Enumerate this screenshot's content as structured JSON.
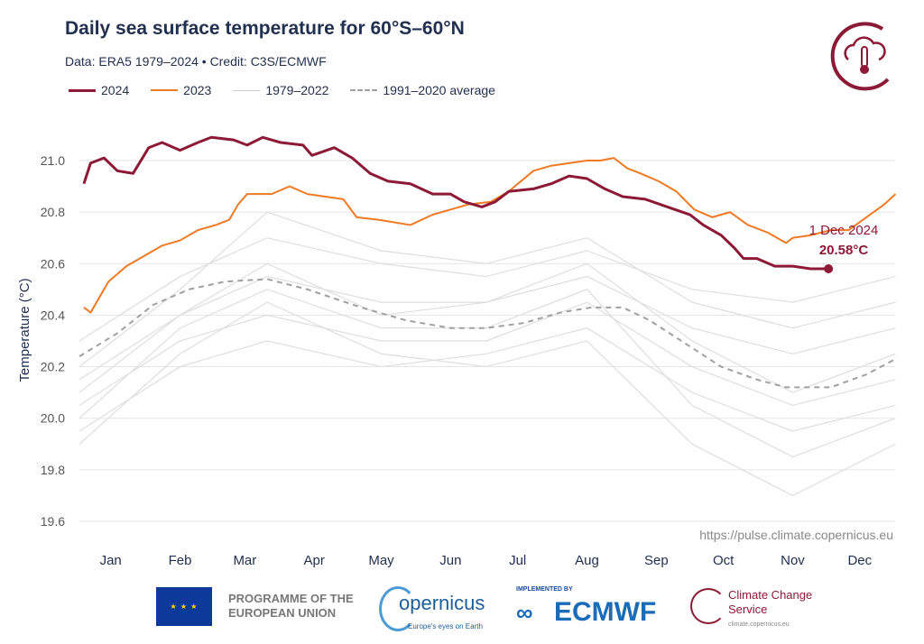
{
  "header": {
    "title": "Daily sea surface temperature for 60°S–60°N",
    "subtitle": "Data: ERA5 1979–2024  •  Credit: C3S/ECMWF"
  },
  "legend": [
    {
      "label": "2024",
      "color": "#8c1a36",
      "style": "solid"
    },
    {
      "label": "2023",
      "color": "#f07a24",
      "style": "solid"
    },
    {
      "label": "1979–2022",
      "color": "#dedede",
      "style": "solid"
    },
    {
      "label": "1991–2020 average",
      "color": "#a0a0a0",
      "style": "dashed"
    }
  ],
  "chart_data": {
    "type": "line",
    "ylabel": "Temperature (°C)",
    "ylim": [
      19.55,
      21.15
    ],
    "yticks": [
      "19.6",
      "19.8",
      "20.0",
      "20.2",
      "20.4",
      "20.6",
      "20.8",
      "21.0"
    ],
    "xticks": [
      "Jan",
      "Feb",
      "Mar",
      "Apr",
      "May",
      "Jun",
      "Jul",
      "Aug",
      "Sep",
      "Oct",
      "Nov",
      "Dec"
    ],
    "grid": true,
    "annotation": {
      "date": "1 Dec 2024",
      "value": "20.58°C"
    },
    "source_note": "https://pulse.climate.copernicus.eu",
    "series": [
      {
        "name": "2024",
        "color": "#8c1a36",
        "points": [
          [
            "Jan 3",
            20.91
          ],
          [
            "Jan 6",
            20.99
          ],
          [
            "Jan 12",
            21.01
          ],
          [
            "Jan 18",
            20.96
          ],
          [
            "Jan 25",
            20.95
          ],
          [
            "Feb 1",
            21.05
          ],
          [
            "Feb 7",
            21.07
          ],
          [
            "Feb 15",
            21.04
          ],
          [
            "Feb 23",
            21.07
          ],
          [
            "Feb 29",
            21.09
          ],
          [
            "Mar 10",
            21.08
          ],
          [
            "Mar 16",
            21.06
          ],
          [
            "Mar 23",
            21.09
          ],
          [
            "Mar 31",
            21.07
          ],
          [
            "Apr 10",
            21.06
          ],
          [
            "Apr 14",
            21.02
          ],
          [
            "Apr 24",
            21.05
          ],
          [
            "May 2",
            21.01
          ],
          [
            "May 10",
            20.95
          ],
          [
            "May 18",
            20.92
          ],
          [
            "May 28",
            20.91
          ],
          [
            "Jun 7",
            20.87
          ],
          [
            "Jun 15",
            20.87
          ],
          [
            "Jun 21",
            20.84
          ],
          [
            "Jun 29",
            20.82
          ],
          [
            "Jul 5",
            20.84
          ],
          [
            "Jul 11",
            20.88
          ],
          [
            "Jul 22",
            20.89
          ],
          [
            "Jul 30",
            20.91
          ],
          [
            "Aug 7",
            20.94
          ],
          [
            "Aug 15",
            20.93
          ],
          [
            "Aug 23",
            20.89
          ],
          [
            "Aug 31",
            20.86
          ],
          [
            "Sep 10",
            20.85
          ],
          [
            "Sep 20",
            20.82
          ],
          [
            "Sep 30",
            20.79
          ],
          [
            "Oct 6",
            20.75
          ],
          [
            "Oct 14",
            20.71
          ],
          [
            "Oct 20",
            20.66
          ],
          [
            "Oct 24",
            20.62
          ],
          [
            "Oct 30",
            20.62
          ],
          [
            "Nov 7",
            20.59
          ],
          [
            "Nov 15",
            20.59
          ],
          [
            "Nov 23",
            20.58
          ],
          [
            "Dec 1",
            20.58
          ]
        ]
      },
      {
        "name": "2023",
        "color": "#f07a24",
        "points": [
          [
            "Jan 3",
            20.43
          ],
          [
            "Jan 6",
            20.41
          ],
          [
            "Jan 10",
            20.47
          ],
          [
            "Jan 14",
            20.53
          ],
          [
            "Jan 22",
            20.59
          ],
          [
            "Jan 30",
            20.63
          ],
          [
            "Feb 7",
            20.67
          ],
          [
            "Feb 15",
            20.69
          ],
          [
            "Feb 23",
            20.73
          ],
          [
            "Mar 2",
            20.75
          ],
          [
            "Mar 8",
            20.77
          ],
          [
            "Mar 12",
            20.83
          ],
          [
            "Mar 16",
            20.87
          ],
          [
            "Mar 27",
            20.87
          ],
          [
            "Apr 4",
            20.9
          ],
          [
            "Apr 12",
            20.87
          ],
          [
            "Apr 20",
            20.86
          ],
          [
            "Apr 28",
            20.85
          ],
          [
            "May 4",
            20.78
          ],
          [
            "May 14",
            20.77
          ],
          [
            "May 28",
            20.75
          ],
          [
            "Jun 7",
            20.79
          ],
          [
            "Jun 15",
            20.81
          ],
          [
            "Jun 23",
            20.83
          ],
          [
            "Jul 3",
            20.84
          ],
          [
            "Jul 11",
            20.88
          ],
          [
            "Jul 22",
            20.96
          ],
          [
            "Jul 30",
            20.98
          ],
          [
            "Aug 7",
            20.99
          ],
          [
            "Aug 15",
            21.0
          ],
          [
            "Aug 21",
            21.0
          ],
          [
            "Aug 27",
            21.01
          ],
          [
            "Sep 2",
            20.97
          ],
          [
            "Sep 8",
            20.95
          ],
          [
            "Sep 16",
            20.92
          ],
          [
            "Sep 24",
            20.88
          ],
          [
            "Oct 2",
            20.81
          ],
          [
            "Oct 10",
            20.78
          ],
          [
            "Oct 18",
            20.8
          ],
          [
            "Oct 26",
            20.75
          ],
          [
            "Nov 4",
            20.72
          ],
          [
            "Nov 12",
            20.68
          ],
          [
            "Nov 15",
            20.7
          ],
          [
            "Nov 23",
            20.71
          ],
          [
            "Dec 2",
            20.73
          ],
          [
            "Dec 10",
            20.73
          ],
          [
            "Dec 18",
            20.78
          ],
          [
            "Dec 26",
            20.83
          ],
          [
            "Dec 31",
            20.87
          ]
        ]
      },
      {
        "name": "1991–2020 average",
        "color": "#a0a0a0",
        "dashed": true,
        "points": [
          [
            "Jan 1",
            20.24
          ],
          [
            "Jan 18",
            20.33
          ],
          [
            "Feb 3",
            20.44
          ],
          [
            "Feb 19",
            20.5
          ],
          [
            "Mar 6",
            20.53
          ],
          [
            "Mar 25",
            20.54
          ],
          [
            "Apr 12",
            20.5
          ],
          [
            "May 6",
            20.43
          ],
          [
            "May 26",
            20.38
          ],
          [
            "Jun 15",
            20.35
          ],
          [
            "Jul 1",
            20.35
          ],
          [
            "Jul 18",
            20.37
          ],
          [
            "Aug 3",
            20.41
          ],
          [
            "Aug 17",
            20.43
          ],
          [
            "Aug 31",
            20.43
          ],
          [
            "Sep 12",
            20.38
          ],
          [
            "Sep 28",
            20.29
          ],
          [
            "Oct 14",
            20.2
          ],
          [
            "Oct 30",
            20.15
          ],
          [
            "Nov 12",
            20.12
          ],
          [
            "Dec 2",
            20.12
          ],
          [
            "Dec 18",
            20.17
          ],
          [
            "Dec 31",
            20.23
          ]
        ]
      }
    ],
    "background_years": {
      "name": "1979–2022",
      "color": "#dedede",
      "dates": [
        "Jan 1",
        "Feb 15",
        "Mar 25",
        "May 15",
        "Jul 1",
        "Aug 15",
        "Oct 1",
        "Nov 15",
        "Dec 31"
      ],
      "values": [
        [
          20.15,
          20.4,
          20.55,
          20.45,
          20.45,
          20.55,
          20.35,
          20.25,
          20.35
        ],
        [
          20.05,
          20.3,
          20.4,
          20.3,
          20.3,
          20.45,
          20.2,
          20.05,
          20.15
        ],
        [
          19.95,
          20.2,
          20.3,
          20.2,
          20.25,
          20.35,
          20.1,
          19.95,
          20.05
        ],
        [
          20.3,
          20.55,
          20.7,
          20.6,
          20.55,
          20.65,
          20.5,
          20.45,
          20.55
        ],
        [
          20.0,
          20.35,
          20.5,
          20.35,
          20.35,
          20.5,
          20.05,
          19.85,
          20.0
        ],
        [
          19.9,
          20.25,
          20.45,
          20.25,
          20.2,
          20.3,
          19.9,
          19.7,
          19.9
        ],
        [
          20.2,
          20.5,
          20.8,
          20.65,
          20.6,
          20.7,
          20.45,
          20.35,
          20.45
        ],
        [
          20.1,
          20.4,
          20.6,
          20.4,
          20.45,
          20.6,
          20.3,
          20.1,
          20.25
        ]
      ]
    }
  },
  "footer": {
    "eu": "PROGRAMME OF THE EUROPEAN UNION",
    "copernicus": "opernicus",
    "copernicus_tag": "Europe's eyes on Earth",
    "ecmwf_pre": "IMPLEMENTED BY",
    "ecmwf": "ECMWF",
    "c3s": "Climate Change Service",
    "c3s_url": "climate.copernicus.eu"
  }
}
